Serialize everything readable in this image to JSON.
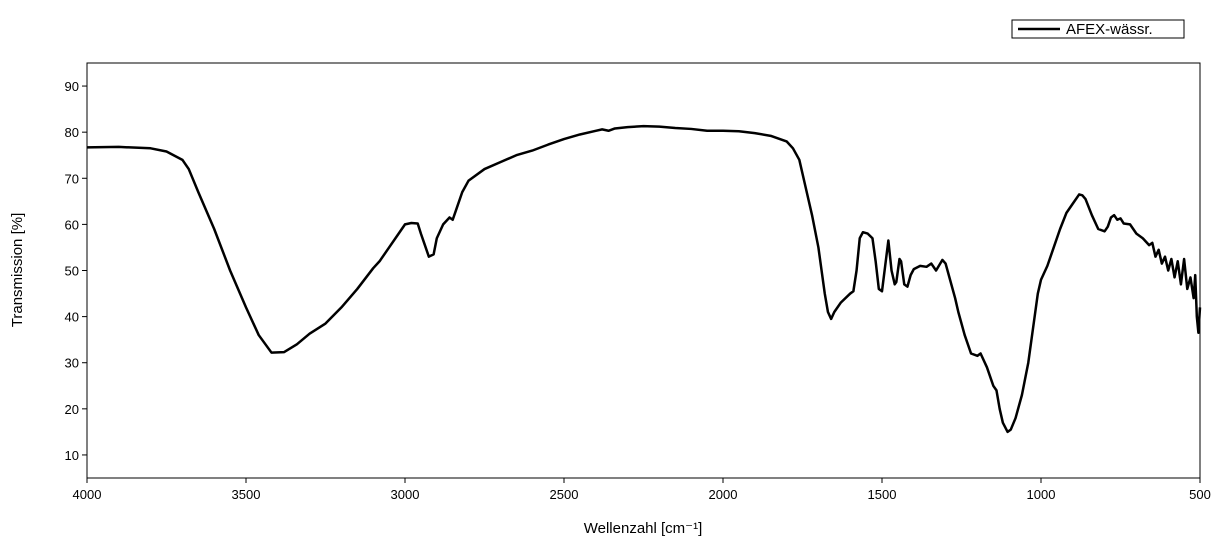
{
  "chart_data": {
    "type": "line",
    "x_label": "Wellenzahl [cm⁻¹]",
    "y_label": "Transmission [%]",
    "x": [
      4000,
      3900,
      3800,
      3750,
      3700,
      3680,
      3650,
      3600,
      3550,
      3500,
      3460,
      3420,
      3380,
      3340,
      3300,
      3250,
      3200,
      3150,
      3100,
      3080,
      3050,
      3020,
      3000,
      2980,
      2960,
      2950,
      2940,
      2925,
      2910,
      2900,
      2880,
      2860,
      2850,
      2840,
      2820,
      2800,
      2750,
      2700,
      2650,
      2600,
      2550,
      2500,
      2450,
      2400,
      2380,
      2360,
      2340,
      2300,
      2250,
      2200,
      2150,
      2100,
      2050,
      2000,
      1950,
      1900,
      1850,
      1800,
      1780,
      1760,
      1740,
      1720,
      1700,
      1690,
      1680,
      1670,
      1660,
      1650,
      1630,
      1600,
      1590,
      1580,
      1570,
      1560,
      1545,
      1530,
      1520,
      1510,
      1500,
      1490,
      1480,
      1470,
      1460,
      1455,
      1445,
      1440,
      1430,
      1420,
      1410,
      1400,
      1380,
      1360,
      1345,
      1330,
      1310,
      1300,
      1290,
      1270,
      1260,
      1240,
      1220,
      1200,
      1190,
      1170,
      1150,
      1140,
      1130,
      1120,
      1105,
      1095,
      1080,
      1060,
      1040,
      1020,
      1010,
      1000,
      980,
      960,
      940,
      920,
      900,
      880,
      870,
      860,
      840,
      820,
      800,
      790,
      780,
      770,
      760,
      750,
      740,
      720,
      700,
      680,
      660,
      650,
      640,
      630,
      620,
      610,
      600,
      590,
      580,
      570,
      560,
      550,
      540,
      530,
      520,
      515,
      510,
      505,
      500
    ],
    "series": [
      {
        "name": "AFEX-wässr.",
        "color": "#000000",
        "values": [
          76.7,
          76.8,
          76.5,
          75.8,
          74,
          72,
          67,
          59,
          50,
          42,
          36,
          32.2,
          32.3,
          34,
          36.3,
          38.5,
          42,
          46,
          50.5,
          52,
          55,
          58,
          60,
          60.3,
          60.2,
          58,
          56,
          53,
          53.5,
          57,
          60,
          61.5,
          61,
          63,
          67,
          69.5,
          72,
          73.5,
          75,
          76,
          77.3,
          78.5,
          79.5,
          80.3,
          80.6,
          80.3,
          80.8,
          81.1,
          81.3,
          81.2,
          80.9,
          80.7,
          80.3,
          80.3,
          80.2,
          79.8,
          79.2,
          78,
          76.5,
          74,
          68,
          62,
          55,
          50,
          45,
          41,
          39.5,
          41,
          43,
          45,
          45.5,
          50,
          57,
          58.3,
          58,
          57,
          52,
          46,
          45.5,
          51,
          56.5,
          50,
          47,
          47.5,
          52.5,
          52,
          47,
          46.5,
          49,
          50.3,
          51,
          50.8,
          51.5,
          50,
          52.3,
          51.5,
          49,
          44,
          41,
          36,
          32,
          31.5,
          32,
          29,
          25,
          24,
          20,
          17,
          15,
          15.5,
          18,
          23,
          30,
          40,
          45,
          48,
          51,
          55,
          59,
          62.5,
          64.5,
          66.5,
          66.3,
          65.5,
          62,
          59,
          58.5,
          59.5,
          61.5,
          62,
          61,
          61.3,
          60.2,
          60,
          58,
          57,
          55.5,
          56,
          53,
          54.5,
          51.5,
          53,
          50,
          52.5,
          48.5,
          52,
          47,
          52.5,
          46,
          48.5,
          44,
          49,
          40,
          36.5,
          42
        ]
      }
    ],
    "xlim": [
      4000,
      500
    ],
    "xticks": [
      4000,
      3500,
      3000,
      2500,
      2000,
      1500,
      1000,
      500
    ],
    "ylim": [
      5,
      95
    ],
    "yticks": [
      10,
      20,
      30,
      40,
      50,
      60,
      70,
      80,
      90
    ],
    "legend": "top-right"
  }
}
